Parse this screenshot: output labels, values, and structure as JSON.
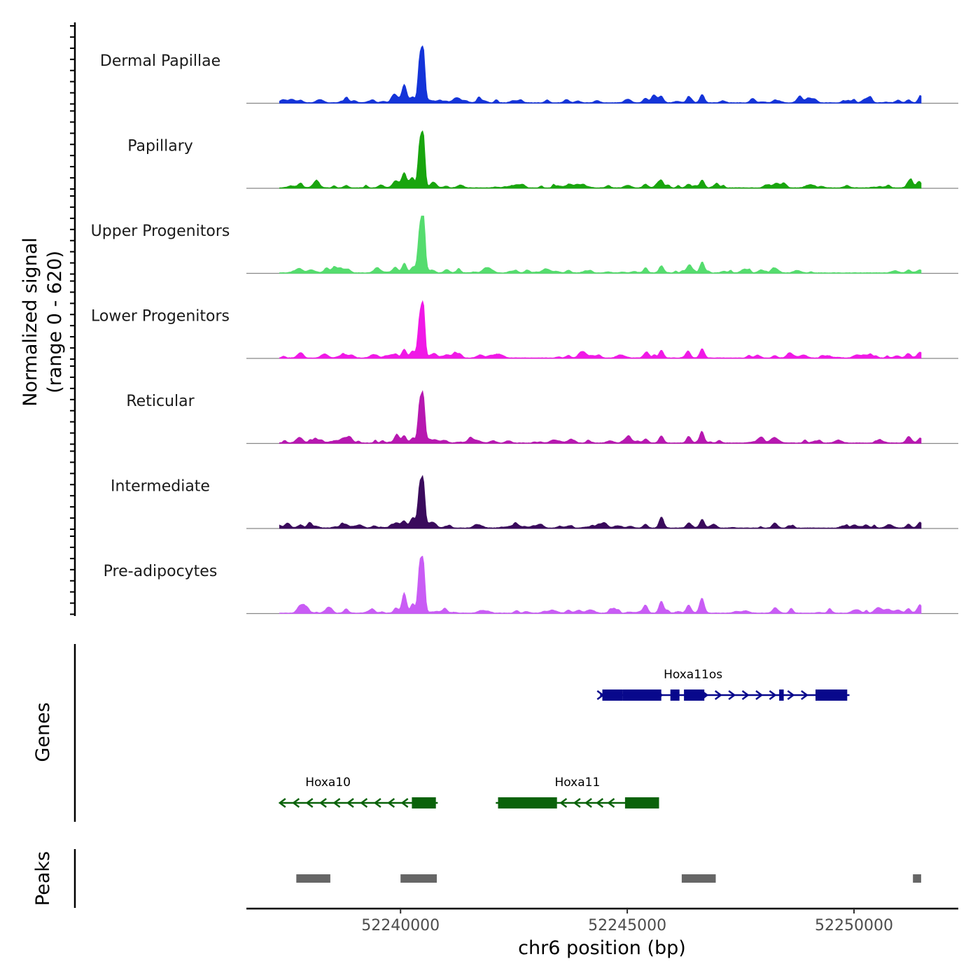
{
  "chart_data": {
    "type": "area",
    "title": "",
    "xlabel": "chr6 position (bp)",
    "ylabel": "Normalized signal\n(range 0 - 620)",
    "ylabel_lines": [
      "Normalized signal",
      "(range 0 - 620)"
    ],
    "signal_range": [
      0,
      620
    ],
    "xlim": [
      52236600,
      52252300
    ],
    "data_extent": [
      52237330,
      52251480
    ],
    "x_ticks": [
      52240000,
      52245000,
      52250000
    ],
    "x_tick_labels": [
      "52240000",
      "52245000",
      "52250000"
    ],
    "panel_labels": {
      "genes": "Genes",
      "peaks": "Peaks"
    },
    "peak_features": [
      {
        "x": 52240500,
        "h": 0.92
      },
      {
        "x": 52240420,
        "h": 0.72
      },
      {
        "x": 52240080,
        "h": 0.22
      },
      {
        "x": 52240270,
        "h": 0.1
      },
      {
        "x": 52239900,
        "h": 0.06
      },
      {
        "x": 52238800,
        "h": 0.04
      },
      {
        "x": 52241000,
        "h": 0.03
      },
      {
        "x": 52245400,
        "h": 0.05
      },
      {
        "x": 52245750,
        "h": 0.07
      },
      {
        "x": 52246650,
        "h": 0.08
      },
      {
        "x": 52246350,
        "h": 0.05
      },
      {
        "x": 52248250,
        "h": 0.04
      },
      {
        "x": 52251200,
        "h": 0.05
      },
      {
        "x": 52251460,
        "h": 0.06
      },
      {
        "x": 52243700,
        "h": 0.03
      },
      {
        "x": 52237800,
        "h": 0.04
      }
    ],
    "series": [
      {
        "name": "Dermal Papillae",
        "color": "#1434d9",
        "scale": 1.0,
        "feature_gain": [
          1,
          1,
          1.3,
          1,
          1,
          1,
          1,
          1.6,
          1.6,
          1.8,
          1.5,
          1,
          1,
          1.5,
          1,
          1
        ],
        "seed": 3
      },
      {
        "name": "Papillary",
        "color": "#19a50e",
        "scale": 1.0,
        "feature_gain": [
          1,
          1,
          1.1,
          1,
          1,
          1,
          1,
          1.3,
          1.8,
          1.7,
          1.3,
          1,
          1.3,
          1.3,
          1,
          1
        ],
        "seed": 7
      },
      {
        "name": "Upper Progenitors",
        "color": "#55dc6e",
        "scale": 1.0,
        "feature_gain": [
          1.15,
          0.95,
          0.6,
          1,
          1,
          1,
          1,
          1.2,
          1.6,
          2.4,
          1.2,
          1,
          0.8,
          0.8,
          1.6,
          1
        ],
        "seed": 11
      },
      {
        "name": "Lower Progenitors",
        "color": "#f018e6",
        "scale": 1.0,
        "feature_gain": [
          1.0,
          0.85,
          0.7,
          0.9,
          1,
          1,
          1,
          1.3,
          1.9,
          2.0,
          1.5,
          1,
          1.2,
          1,
          1.5,
          1.2
        ],
        "seed": 13
      },
      {
        "name": "Reticular",
        "color": "#b718b0",
        "scale": 1.0,
        "feature_gain": [
          0.85,
          0.9,
          0.55,
          0.9,
          1,
          1,
          1,
          1.2,
          1.8,
          2.0,
          1.5,
          1,
          1.5,
          1.4,
          1.2,
          1.2
        ],
        "seed": 17
      },
      {
        "name": "Intermediate",
        "color": "#3a0a5c",
        "scale": 1.0,
        "feature_gain": [
          0.85,
          0.95,
          0.5,
          0.9,
          1,
          1,
          1,
          1.3,
          2.2,
          1.9,
          1.6,
          1,
          1.3,
          1.3,
          1.2,
          1.0
        ],
        "seed": 19
      },
      {
        "name": "Pre-adipocytes",
        "color": "#c95cf5",
        "scale": 1.0,
        "feature_gain": [
          0.95,
          1.1,
          1.6,
          1.5,
          1.5,
          1.8,
          1.2,
          2.8,
          3.0,
          2.7,
          2.6,
          1.8,
          1.6,
          1.8,
          1.8,
          2.2
        ],
        "seed": 23
      }
    ],
    "genes": [
      {
        "name": "Hoxa11os",
        "strand": "+",
        "color": "#08088c",
        "row": 1,
        "start": 52244400,
        "end": 52249900,
        "label_x": 52246450,
        "exons": [
          [
            52244450,
            52244900
          ],
          [
            52244900,
            52245500
          ],
          [
            52245500,
            52245750
          ],
          [
            52245950,
            52246150
          ],
          [
            52246250,
            52246700
          ],
          [
            52248350,
            52248450
          ],
          [
            52249150,
            52249850
          ]
        ],
        "arrows": [
          52244400,
          52245700,
          52246700,
          52247000,
          52247300,
          52247600,
          52247900,
          52248200,
          52248600,
          52248900
        ]
      },
      {
        "name": "Hoxa10",
        "strand": "-",
        "color": "#0a620a",
        "row": 2,
        "start": 52237350,
        "end": 52240820,
        "label_x": 52238400,
        "exons": [
          [
            52240250,
            52240780
          ]
        ],
        "arrows": [
          52237400,
          52237700,
          52238000,
          52238300,
          52238600,
          52238900,
          52239200,
          52239500,
          52239800,
          52240100
        ]
      },
      {
        "name": "Hoxa11",
        "strand": "-",
        "color": "#0a620a",
        "row": 2,
        "start": 52242100,
        "end": 52245700,
        "label_x": 52243900,
        "exons": [
          [
            52242150,
            52243450
          ],
          [
            52244950,
            52245700
          ]
        ],
        "arrows": [
          52243600,
          52243900,
          52244150,
          52244400,
          52244650
        ]
      }
    ],
    "peaks": [
      {
        "start": 52237700,
        "end": 52238450
      },
      {
        "start": 52240000,
        "end": 52240800
      },
      {
        "start": 52246200,
        "end": 52246950
      },
      {
        "start": 52251300,
        "end": 52251480
      }
    ]
  }
}
